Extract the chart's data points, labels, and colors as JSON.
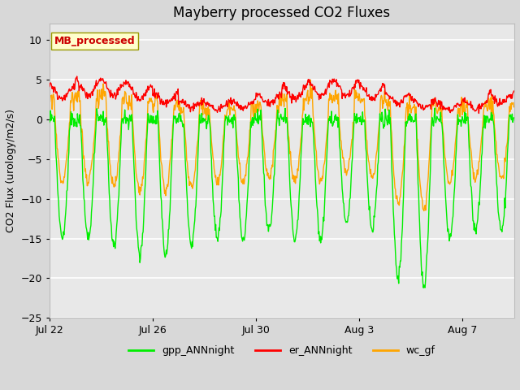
{
  "title": "Mayberry processed CO2 Fluxes",
  "ylabel": "CO2 Flux (urology/m2/s)",
  "ylim": [
    -25,
    12
  ],
  "yticks": [
    -25,
    -20,
    -15,
    -10,
    -5,
    0,
    5,
    10
  ],
  "outer_bg": "#d8d8d8",
  "plot_bg": "#e8e8e8",
  "legend_labels": [
    "gpp_ANNnight",
    "er_ANNnight",
    "wc_gf"
  ],
  "legend_colors": [
    "#00ee00",
    "#ff0000",
    "#ffa500"
  ],
  "annotation_text": "MB_processed",
  "annotation_fg": "#cc0000",
  "annotation_bg": "#ffffcc",
  "grid_color": "#ffffff",
  "line_width": 1.0,
  "xtick_labels": [
    "Jul 22",
    "Jul 26",
    "Jul 30",
    "Aug 3",
    "Aug 7"
  ],
  "xtick_positions": [
    0,
    4,
    8,
    12,
    16
  ]
}
